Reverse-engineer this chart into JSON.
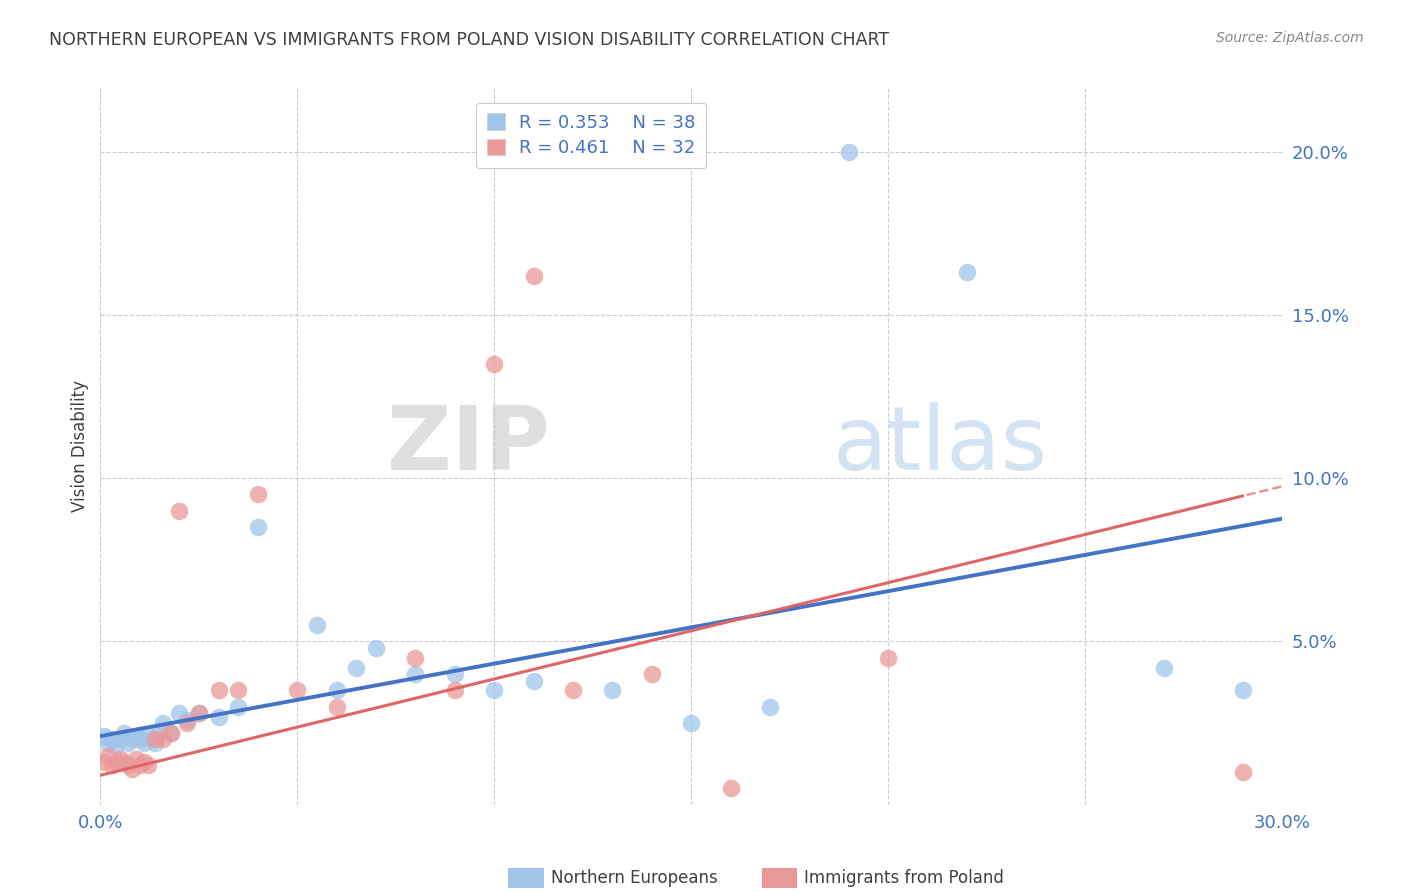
{
  "title": "NORTHERN EUROPEAN VS IMMIGRANTS FROM POLAND VISION DISABILITY CORRELATION CHART",
  "source": "Source: ZipAtlas.com",
  "ylabel": "Vision Disability",
  "xlim": [
    0.0,
    0.3
  ],
  "ylim": [
    0.0,
    0.22
  ],
  "yticks": [
    0.0,
    0.05,
    0.1,
    0.15,
    0.2
  ],
  "ytick_labels": [
    "",
    "5.0%",
    "10.0%",
    "15.0%",
    "20.0%"
  ],
  "xticks": [
    0.0,
    0.05,
    0.1,
    0.15,
    0.2,
    0.25,
    0.3
  ],
  "xtick_labels": [
    "0.0%",
    "",
    "",
    "",
    "",
    "",
    "30.0%"
  ],
  "blue_R": 0.353,
  "blue_N": 38,
  "pink_R": 0.461,
  "pink_N": 32,
  "blue_color": "#9fc5e8",
  "pink_color": "#ea9999",
  "line_blue": "#4472c4",
  "line_pink": "#e06666",
  "tick_color": "#4472c4",
  "title_color": "#404040",
  "blue_scatter_x": [
    0.001,
    0.002,
    0.003,
    0.004,
    0.005,
    0.006,
    0.007,
    0.008,
    0.009,
    0.01,
    0.011,
    0.012,
    0.013,
    0.014,
    0.015,
    0.016,
    0.018,
    0.02,
    0.022,
    0.025,
    0.03,
    0.035,
    0.04,
    0.055,
    0.06,
    0.065,
    0.07,
    0.08,
    0.09,
    0.1,
    0.11,
    0.13,
    0.15,
    0.17,
    0.19,
    0.22,
    0.27,
    0.29
  ],
  "blue_scatter_y": [
    0.021,
    0.019,
    0.02,
    0.018,
    0.02,
    0.022,
    0.019,
    0.02,
    0.021,
    0.02,
    0.019,
    0.021,
    0.02,
    0.019,
    0.022,
    0.025,
    0.022,
    0.028,
    0.026,
    0.028,
    0.027,
    0.03,
    0.085,
    0.055,
    0.035,
    0.042,
    0.048,
    0.04,
    0.04,
    0.035,
    0.038,
    0.035,
    0.025,
    0.03,
    0.2,
    0.163,
    0.042,
    0.035
  ],
  "pink_scatter_x": [
    0.001,
    0.002,
    0.003,
    0.004,
    0.005,
    0.006,
    0.007,
    0.008,
    0.009,
    0.01,
    0.011,
    0.012,
    0.014,
    0.016,
    0.018,
    0.02,
    0.022,
    0.025,
    0.03,
    0.035,
    0.04,
    0.05,
    0.06,
    0.08,
    0.09,
    0.1,
    0.11,
    0.12,
    0.14,
    0.16,
    0.2,
    0.29
  ],
  "pink_scatter_y": [
    0.013,
    0.015,
    0.012,
    0.013,
    0.014,
    0.013,
    0.012,
    0.011,
    0.014,
    0.012,
    0.013,
    0.012,
    0.02,
    0.02,
    0.022,
    0.09,
    0.025,
    0.028,
    0.035,
    0.035,
    0.095,
    0.035,
    0.03,
    0.045,
    0.035,
    0.135,
    0.162,
    0.035,
    0.04,
    0.005,
    0.045,
    0.01
  ],
  "watermark_zip": "ZIP",
  "watermark_atlas": "atlas",
  "background_color": "#ffffff",
  "grid_color": "#cccccc"
}
